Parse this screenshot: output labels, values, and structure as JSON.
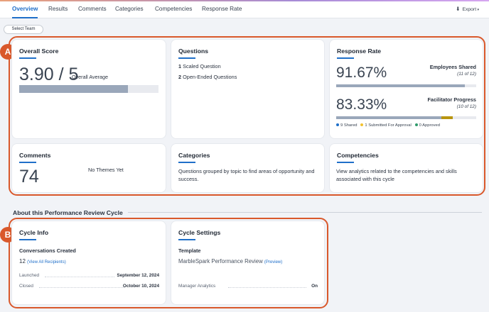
{
  "tabs": [
    {
      "label": "Overview",
      "active": true
    },
    {
      "label": "Results",
      "active": false
    },
    {
      "label": "Comments",
      "active": false
    },
    {
      "label": "Categories",
      "active": false
    },
    {
      "label": "Competencies",
      "active": false
    },
    {
      "label": "Response Rate",
      "active": false
    }
  ],
  "export": {
    "label": "Export",
    "icon": "download-icon"
  },
  "select_team": {
    "label": "Select Team"
  },
  "callouts": {
    "a": "A",
    "b": "B"
  },
  "overall_score": {
    "title": "Overall Score",
    "score": "3.90 / 5",
    "caption": "Overall Average",
    "progress_fraction": 0.78
  },
  "questions": {
    "title": "Questions",
    "scaled_count": "1",
    "scaled_label": "Scaled Question",
    "open_count": "2",
    "open_label": "Open-Ended Questions"
  },
  "response_rate": {
    "title": "Response Rate",
    "employees": {
      "percent": "91.67%",
      "label": "Employees Shared",
      "detail": "(11 of 12)",
      "fraction": 0.9167
    },
    "facilitator": {
      "percent": "83.33%",
      "label": "Facilitator Progress",
      "detail": "(10 of 12)",
      "shared_fraction": 0.75,
      "approval_fraction": 0.0833
    },
    "legend": [
      {
        "label": "9 Shared",
        "color": "#1f6fc9"
      },
      {
        "label": "1 Submitted For Approval",
        "color": "#f2c230"
      },
      {
        "label": "0 Approved",
        "color": "#2e9a6a"
      }
    ]
  },
  "comments": {
    "title": "Comments",
    "count": "74",
    "themes": "No Themes Yet"
  },
  "categories": {
    "title": "Categories",
    "description": "Questions grouped by topic to find areas of opportunity and success."
  },
  "competencies": {
    "title": "Competencies",
    "description": "View analytics related to the competencies and skills associated with this cycle"
  },
  "section_title": "About this Performance Review Cycle",
  "cycle_info": {
    "title": "Cycle Info",
    "conversations_label": "Conversations Created",
    "conversations_count": "12",
    "view_all": "(View All Recipients)",
    "launched_label": "Launched",
    "launched_value": "September 12, 2024",
    "closed_label": "Closed",
    "closed_value": "October 10, 2024"
  },
  "cycle_settings": {
    "title": "Cycle Settings",
    "template_label": "Template",
    "template_name": "MarbleSpark Performance Review",
    "preview": "(Preview)",
    "manager_label": "Manager Analytics",
    "manager_value": "On"
  },
  "colors": {
    "accent": "#1f6fc9",
    "callout": "#d9582b",
    "bar_gray": "#9aa7ba",
    "approval": "#b8950f"
  }
}
